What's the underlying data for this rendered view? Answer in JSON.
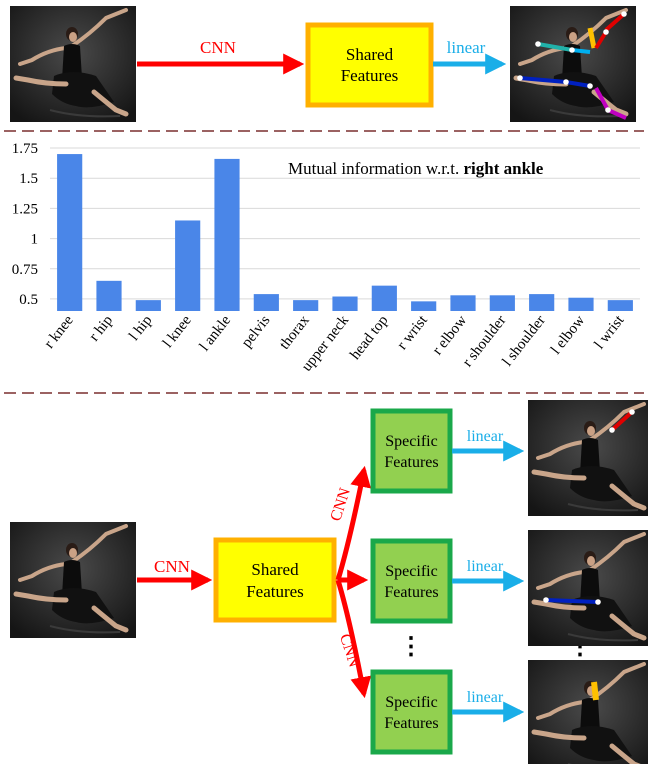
{
  "top": {
    "cnn_label": "CNN",
    "box_label": [
      "Shared",
      "Features"
    ],
    "linear_label": "linear"
  },
  "chart_data": {
    "type": "bar",
    "title_prefix": "Mutual information w.r.t. ",
    "title_bold": "right ankle",
    "categories": [
      "r knee",
      "r hip",
      "l hip",
      "l knee",
      "l ankle",
      "pelvis",
      "thorax",
      "upper neck",
      "head top",
      "r wrist",
      "r elbow",
      "r shoulder",
      "l shoulder",
      "l elbow",
      "l wrist"
    ],
    "values": [
      1.7,
      0.65,
      0.49,
      1.15,
      1.66,
      0.54,
      0.49,
      0.52,
      0.61,
      0.48,
      0.53,
      0.53,
      0.54,
      0.51,
      0.49
    ],
    "yticks": [
      "0.5",
      "0.75",
      "1",
      "1.25",
      "1.5",
      "1.75"
    ],
    "ylim": [
      0.4,
      1.8
    ],
    "grid": true,
    "bar_color": "#4a86e8"
  },
  "bottom": {
    "cnn_label": "CNN",
    "shared_label": [
      "Shared",
      "Features"
    ],
    "specific_label": [
      "Specific",
      "Features"
    ],
    "linear_label": "linear",
    "branch_cnn_label": "CNN",
    "ellipsis": "⋮"
  },
  "colors": {
    "cnn_arrow": "#ff0000",
    "linear_arrow": "#1aaee8",
    "shared_fill": "#ffff00",
    "shared_border": "#ffb000",
    "specific_fill": "#92d050",
    "specific_border": "#1aa84a",
    "divider": "#7a2f2f"
  }
}
